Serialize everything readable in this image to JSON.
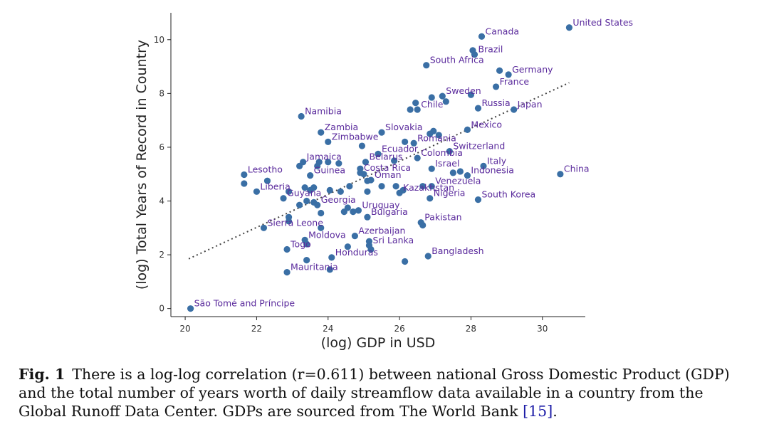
{
  "chart_data": {
    "type": "scatter",
    "xlabel": "(log) GDP in USD",
    "ylabel": "(log) Total Years of Record in Country",
    "xlim": [
      19.6,
      31.2
    ],
    "ylim": [
      -0.3,
      11.0
    ],
    "xticks": [
      20,
      22,
      24,
      26,
      28,
      30
    ],
    "yticks": [
      0,
      2,
      4,
      6,
      8,
      10
    ],
    "grid": false,
    "point_color": "#3a6fa5",
    "label_color": "#5a2a9c",
    "trendline": {
      "style": "dotted",
      "color": "#444444",
      "x": [
        20.1,
        30.75
      ],
      "y": [
        1.85,
        8.4
      ]
    },
    "labeled_points": [
      {
        "name": "United States",
        "x": 30.75,
        "y": 10.45
      },
      {
        "name": "Canada",
        "x": 28.3,
        "y": 10.12
      },
      {
        "name": "Brazil",
        "x": 28.1,
        "y": 9.45
      },
      {
        "name": "South Africa",
        "x": 26.75,
        "y": 9.05
      },
      {
        "name": "Germany",
        "x": 29.05,
        "y": 8.7
      },
      {
        "name": "France",
        "x": 28.7,
        "y": 8.25
      },
      {
        "name": "Sweden",
        "x": 27.2,
        "y": 7.9
      },
      {
        "name": "Russia",
        "x": 28.2,
        "y": 7.45
      },
      {
        "name": "Japan",
        "x": 29.2,
        "y": 7.4
      },
      {
        "name": "Chile",
        "x": 26.5,
        "y": 7.4
      },
      {
        "name": "Namibia",
        "x": 23.25,
        "y": 7.15
      },
      {
        "name": "Mexico",
        "x": 27.9,
        "y": 6.65
      },
      {
        "name": "Zambia",
        "x": 23.8,
        "y": 6.55
      },
      {
        "name": "Slovakia",
        "x": 25.5,
        "y": 6.55
      },
      {
        "name": "Zimbabwe",
        "x": 24.0,
        "y": 6.2
      },
      {
        "name": "Romania",
        "x": 26.4,
        "y": 6.15
      },
      {
        "name": "Switzerland",
        "x": 27.4,
        "y": 5.85
      },
      {
        "name": "Ecuador",
        "x": 25.4,
        "y": 5.75
      },
      {
        "name": "Colombia",
        "x": 26.5,
        "y": 5.6
      },
      {
        "name": "Jamaica",
        "x": 23.3,
        "y": 5.45
      },
      {
        "name": "Belarus",
        "x": 25.05,
        "y": 5.45
      },
      {
        "name": "Italy",
        "x": 28.35,
        "y": 5.3
      },
      {
        "name": "Israel",
        "x": 26.9,
        "y": 5.2
      },
      {
        "name": "Costa Rica",
        "x": 24.9,
        "y": 5.05
      },
      {
        "name": "Lesotho",
        "x": 21.65,
        "y": 4.98
      },
      {
        "name": "Guinea",
        "x": 23.5,
        "y": 4.95
      },
      {
        "name": "Indonesia",
        "x": 27.9,
        "y": 4.95
      },
      {
        "name": "China",
        "x": 30.5,
        "y": 5.0
      },
      {
        "name": "Oman",
        "x": 25.2,
        "y": 4.78
      },
      {
        "name": "Venezuela",
        "x": 26.9,
        "y": 4.55
      },
      {
        "name": "Liberia",
        "x": 22.0,
        "y": 4.35
      },
      {
        "name": "Kazakhstan",
        "x": 26.0,
        "y": 4.3
      },
      {
        "name": "Guyana",
        "x": 22.75,
        "y": 4.1
      },
      {
        "name": "Nigeria",
        "x": 26.85,
        "y": 4.1
      },
      {
        "name": "South Korea",
        "x": 28.2,
        "y": 4.05
      },
      {
        "name": "Georgia",
        "x": 23.7,
        "y": 3.85
      },
      {
        "name": "Uruguay",
        "x": 24.85,
        "y": 3.65
      },
      {
        "name": "Bulgaria",
        "x": 25.1,
        "y": 3.4
      },
      {
        "name": "Pakistan",
        "x": 26.6,
        "y": 3.2
      },
      {
        "name": "Sierra Leone",
        "x": 22.2,
        "y": 3.0
      },
      {
        "name": "Azerbaijan",
        "x": 24.75,
        "y": 2.7
      },
      {
        "name": "Moldova",
        "x": 23.35,
        "y": 2.55
      },
      {
        "name": "Sri Lanka",
        "x": 25.15,
        "y": 2.35
      },
      {
        "name": "Togo",
        "x": 22.85,
        "y": 2.2
      },
      {
        "name": "Bangladesh",
        "x": 26.8,
        "y": 1.95
      },
      {
        "name": "Honduras",
        "x": 24.1,
        "y": 1.9
      },
      {
        "name": "Mauritania",
        "x": 22.85,
        "y": 1.35
      },
      {
        "name": "São Tomé and Príncipe",
        "x": 20.15,
        "y": 0.0
      }
    ],
    "unlabeled_points": [
      {
        "x": 28.05,
        "y": 9.6
      },
      {
        "x": 28.8,
        "y": 8.85
      },
      {
        "x": 28.0,
        "y": 7.95
      },
      {
        "x": 26.9,
        "y": 7.85
      },
      {
        "x": 27.3,
        "y": 7.7
      },
      {
        "x": 26.45,
        "y": 7.65
      },
      {
        "x": 26.3,
        "y": 7.4
      },
      {
        "x": 26.95,
        "y": 6.6
      },
      {
        "x": 26.85,
        "y": 6.5
      },
      {
        "x": 27.1,
        "y": 6.45
      },
      {
        "x": 26.15,
        "y": 6.2
      },
      {
        "x": 24.95,
        "y": 6.05
      },
      {
        "x": 23.75,
        "y": 5.45
      },
      {
        "x": 24.0,
        "y": 5.45
      },
      {
        "x": 24.3,
        "y": 5.4
      },
      {
        "x": 23.2,
        "y": 5.3
      },
      {
        "x": 23.7,
        "y": 5.3
      },
      {
        "x": 24.9,
        "y": 5.2
      },
      {
        "x": 25.0,
        "y": 5.0
      },
      {
        "x": 25.1,
        "y": 4.75
      },
      {
        "x": 25.85,
        "y": 5.5
      },
      {
        "x": 27.5,
        "y": 5.05
      },
      {
        "x": 27.7,
        "y": 5.1
      },
      {
        "x": 21.65,
        "y": 4.65
      },
      {
        "x": 22.3,
        "y": 4.75
      },
      {
        "x": 23.35,
        "y": 4.5
      },
      {
        "x": 23.6,
        "y": 4.5
      },
      {
        "x": 23.5,
        "y": 4.4
      },
      {
        "x": 24.05,
        "y": 4.4
      },
      {
        "x": 24.35,
        "y": 4.35
      },
      {
        "x": 24.6,
        "y": 4.55
      },
      {
        "x": 25.1,
        "y": 4.35
      },
      {
        "x": 25.5,
        "y": 4.55
      },
      {
        "x": 25.9,
        "y": 4.55
      },
      {
        "x": 26.1,
        "y": 4.4
      },
      {
        "x": 26.65,
        "y": 4.55
      },
      {
        "x": 22.9,
        "y": 4.35
      },
      {
        "x": 23.2,
        "y": 3.85
      },
      {
        "x": 23.4,
        "y": 4.0
      },
      {
        "x": 23.6,
        "y": 3.95
      },
      {
        "x": 23.8,
        "y": 3.55
      },
      {
        "x": 24.45,
        "y": 3.6
      },
      {
        "x": 24.7,
        "y": 3.6
      },
      {
        "x": 24.55,
        "y": 3.75
      },
      {
        "x": 22.9,
        "y": 3.4
      },
      {
        "x": 22.9,
        "y": 3.25
      },
      {
        "x": 23.8,
        "y": 3.0
      },
      {
        "x": 26.65,
        "y": 3.1
      },
      {
        "x": 23.4,
        "y": 2.4
      },
      {
        "x": 24.55,
        "y": 2.3
      },
      {
        "x": 25.15,
        "y": 2.5
      },
      {
        "x": 25.2,
        "y": 2.2
      },
      {
        "x": 23.4,
        "y": 1.8
      },
      {
        "x": 26.15,
        "y": 1.75
      },
      {
        "x": 24.05,
        "y": 1.45
      }
    ]
  },
  "caption": {
    "label": "Fig. 1",
    "text_before_ref": "There is a log-log correlation (r=0.611) between national Gross Domestic Product (GDP) and the total number of years worth of daily streamflow data available in a country from the Global Runoff Data Center. GDPs are sourced from The World Bank ",
    "ref_open": "[",
    "ref": "15",
    "ref_close": "]",
    "text_after_ref": "."
  }
}
